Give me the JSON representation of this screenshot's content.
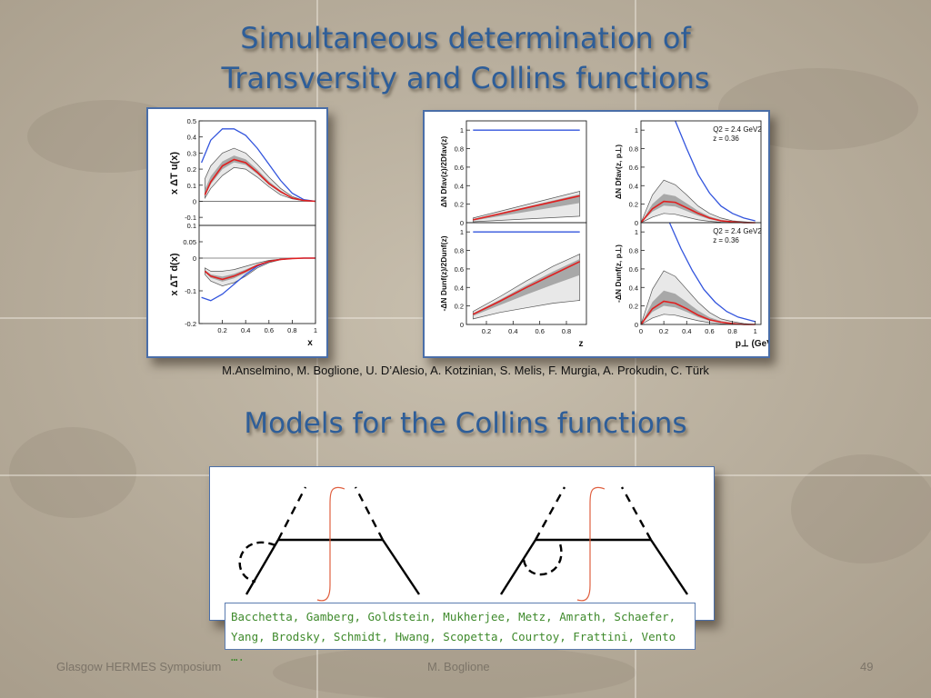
{
  "slide": {
    "title_line1": "Simultaneous determination of",
    "title_line2": "Transversity and Collins functions",
    "authors": "M.Anselmino, M. Boglione, U. D’Alesio,  A. Kotzinian, S. Melis, F. Murgia, A. Prokudin, C. Türk",
    "section_title": "Models for the Collins functions",
    "references_line1": "Bacchetta, Gamberg, Goldstein, Mukherjee, Metz, Amrath, Schaefer,",
    "references_line2": "Yang, Brodsky, Schmidt, Hwang, Scopetta, Courtoy, Frattini, Vento ….",
    "footer_left": "Glasgow HERMES Symposium",
    "footer_center": "M. Boglione",
    "footer_right": "49"
  },
  "colors": {
    "title": "#2e5e99",
    "best_fit": "#e02020",
    "positivity_bound": "#3355dd",
    "band_outer": "#e8e8e8",
    "band_inner": "#a8a8a8",
    "panel_border": "#4a6ea8",
    "references_text": "#3f8a2c",
    "diagram_integral": "#e06040"
  },
  "chart_data": [
    {
      "type": "line",
      "id": "transversity-u",
      "ylabel": "x ΔT u(x)",
      "xlabel": "",
      "xlim": [
        0,
        1
      ],
      "ylim": [
        -0.15,
        0.5
      ],
      "yticks": [
        "0.5",
        "0.4",
        "0.3",
        "0.2",
        "0.1",
        "0",
        "-0.1"
      ],
      "xticks": [],
      "series": [
        {
          "role": "bound",
          "x": [
            0.02,
            0.1,
            0.2,
            0.3,
            0.4,
            0.5,
            0.6,
            0.7,
            0.8,
            0.9,
            1.0
          ],
          "y": [
            0.24,
            0.38,
            0.45,
            0.45,
            0.41,
            0.33,
            0.23,
            0.13,
            0.05,
            0.01,
            0
          ]
        },
        {
          "role": "band_upper",
          "x": [
            0.05,
            0.1,
            0.2,
            0.3,
            0.4,
            0.5,
            0.6,
            0.7,
            0.8,
            0.9,
            1.0
          ],
          "y": [
            0.14,
            0.22,
            0.3,
            0.33,
            0.3,
            0.23,
            0.15,
            0.08,
            0.03,
            0.005,
            0
          ]
        },
        {
          "role": "best_fit",
          "x": [
            0.05,
            0.1,
            0.2,
            0.3,
            0.4,
            0.5,
            0.6,
            0.7,
            0.8,
            0.9,
            1.0
          ],
          "y": [
            0.04,
            0.12,
            0.22,
            0.26,
            0.24,
            0.18,
            0.11,
            0.06,
            0.02,
            0.005,
            0
          ]
        },
        {
          "role": "band_lower",
          "x": [
            0.05,
            0.1,
            0.2,
            0.3,
            0.4,
            0.5,
            0.6,
            0.7,
            0.8,
            0.9,
            1.0
          ],
          "y": [
            0.02,
            0.08,
            0.16,
            0.21,
            0.2,
            0.15,
            0.09,
            0.04,
            0.015,
            0.003,
            0
          ]
        }
      ]
    },
    {
      "type": "line",
      "id": "transversity-d",
      "ylabel": "x ΔT d(x)",
      "xlabel": "x",
      "xlim": [
        0,
        1
      ],
      "ylim": [
        -0.2,
        0.1
      ],
      "yticks": [
        "0.1",
        "0.05",
        "0",
        "-0.1",
        "-0.2"
      ],
      "xticks": [
        "0.2",
        "0.4",
        "0.6",
        "0.8",
        "1"
      ],
      "series": [
        {
          "role": "bound",
          "x": [
            0.02,
            0.1,
            0.2,
            0.3,
            0.4,
            0.5,
            0.6,
            0.7,
            0.8,
            0.9,
            1.0
          ],
          "y": [
            -0.12,
            -0.13,
            -0.11,
            -0.08,
            -0.05,
            -0.025,
            -0.01,
            -0.004,
            -0.001,
            0,
            0
          ]
        },
        {
          "role": "band_upper",
          "x": [
            0.05,
            0.1,
            0.2,
            0.3,
            0.4,
            0.5,
            0.6,
            0.7,
            0.8,
            0.9,
            1.0
          ],
          "y": [
            -0.03,
            -0.04,
            -0.04,
            -0.035,
            -0.025,
            -0.015,
            -0.007,
            -0.003,
            -0.001,
            0,
            0
          ]
        },
        {
          "role": "best_fit",
          "x": [
            0.05,
            0.1,
            0.2,
            0.3,
            0.4,
            0.5,
            0.6,
            0.7,
            0.8,
            0.9,
            1.0
          ],
          "y": [
            -0.04,
            -0.055,
            -0.065,
            -0.055,
            -0.04,
            -0.022,
            -0.01,
            -0.004,
            -0.001,
            0,
            0
          ]
        },
        {
          "role": "band_lower",
          "x": [
            0.05,
            0.1,
            0.2,
            0.3,
            0.4,
            0.5,
            0.6,
            0.7,
            0.8,
            0.9,
            1.0
          ],
          "y": [
            -0.05,
            -0.07,
            -0.085,
            -0.075,
            -0.055,
            -0.03,
            -0.014,
            -0.005,
            -0.001,
            0,
            0
          ]
        }
      ]
    },
    {
      "type": "line",
      "id": "collins-fav-z",
      "ylabel": "ΔN Dfav(z)/2Dfav(z)",
      "xlabel": "",
      "xlim": [
        0.05,
        0.95
      ],
      "ylim": [
        0,
        1.1
      ],
      "yticks": [
        "1",
        "0.8",
        "0.6",
        "0.4",
        "0.2",
        "0"
      ],
      "xticks": [],
      "series": [
        {
          "role": "bound",
          "x": [
            0.1,
            0.9
          ],
          "y": [
            1,
            1
          ]
        },
        {
          "role": "band_upper",
          "x": [
            0.1,
            0.9
          ],
          "y": [
            0.05,
            0.34
          ]
        },
        {
          "role": "best_fit",
          "x": [
            0.1,
            0.9
          ],
          "y": [
            0.03,
            0.29
          ]
        },
        {
          "role": "band_lower",
          "x": [
            0.1,
            0.9
          ],
          "y": [
            0.01,
            0.07
          ]
        }
      ]
    },
    {
      "type": "line",
      "id": "collins-unf-z",
      "ylabel": "-ΔN Dunf(z)/2Dunf(z)",
      "xlabel": "z",
      "xlim": [
        0.05,
        0.95
      ],
      "ylim": [
        0,
        1.1
      ],
      "yticks": [
        "1",
        "0.8",
        "0.6",
        "0.4",
        "0.2",
        "0"
      ],
      "xticks": [
        "0.2",
        "0.4",
        "0.6",
        "0.8"
      ],
      "series": [
        {
          "role": "bound",
          "x": [
            0.1,
            0.9
          ],
          "y": [
            1,
            1
          ]
        },
        {
          "role": "band_upper",
          "x": [
            0.1,
            0.3,
            0.5,
            0.7,
            0.9
          ],
          "y": [
            0.14,
            0.3,
            0.47,
            0.63,
            0.76
          ]
        },
        {
          "role": "best_fit",
          "x": [
            0.1,
            0.3,
            0.5,
            0.7,
            0.9
          ],
          "y": [
            0.11,
            0.25,
            0.4,
            0.54,
            0.68
          ]
        },
        {
          "role": "band_lower",
          "x": [
            0.1,
            0.3,
            0.5,
            0.7,
            0.9
          ],
          "y": [
            0.06,
            0.13,
            0.18,
            0.23,
            0.26
          ]
        }
      ]
    },
    {
      "type": "line",
      "id": "collins-fav-pt",
      "ylabel": "ΔN Dfav(z, p⊥)",
      "xlabel": "",
      "annotation": [
        "Q2 = 2.4 GeV2",
        "z = 0.36"
      ],
      "xlim": [
        0,
        1.05
      ],
      "ylim": [
        0,
        1.1
      ],
      "yticks": [
        "1",
        "0.8",
        "0.6",
        "0.4",
        "0.2",
        "0"
      ],
      "xticks": [],
      "series": [
        {
          "role": "bound",
          "x": [
            0.3,
            0.4,
            0.5,
            0.6,
            0.7,
            0.8,
            0.9,
            1.0
          ],
          "y": [
            1.1,
            0.8,
            0.52,
            0.32,
            0.18,
            0.1,
            0.05,
            0.02
          ]
        },
        {
          "role": "band_upper",
          "x": [
            0,
            0.1,
            0.2,
            0.3,
            0.4,
            0.5,
            0.6,
            0.7,
            0.8,
            0.9,
            1.0
          ],
          "y": [
            0,
            0.3,
            0.46,
            0.41,
            0.3,
            0.18,
            0.1,
            0.05,
            0.02,
            0.01,
            0
          ]
        },
        {
          "role": "best_fit",
          "x": [
            0,
            0.1,
            0.2,
            0.3,
            0.4,
            0.5,
            0.6,
            0.7,
            0.8,
            0.9,
            1.0
          ],
          "y": [
            0,
            0.15,
            0.23,
            0.22,
            0.16,
            0.1,
            0.05,
            0.02,
            0.01,
            0,
            0
          ]
        },
        {
          "role": "band_lower",
          "x": [
            0,
            0.1,
            0.2,
            0.3,
            0.4,
            0.5,
            0.6,
            0.7,
            0.8,
            0.9,
            1.0
          ],
          "y": [
            0,
            0.06,
            0.1,
            0.09,
            0.06,
            0.03,
            0.015,
            0.005,
            0,
            0,
            0
          ]
        }
      ]
    },
    {
      "type": "line",
      "id": "collins-unf-pt",
      "ylabel": "-ΔN Dunf(z, p⊥)",
      "xlabel": "p⊥ (GeV)",
      "annotation": [
        "Q2 = 2.4 GeV2",
        "z = 0.36"
      ],
      "xlim": [
        0,
        1.05
      ],
      "ylim": [
        0,
        1.1
      ],
      "yticks": [
        "1",
        "0.8",
        "0.6",
        "0.4",
        "0.2",
        "0"
      ],
      "xticks": [
        "0",
        "0.2",
        "0.4",
        "0.6",
        "0.8",
        "1"
      ],
      "series": [
        {
          "role": "bound",
          "x": [
            0.25,
            0.35,
            0.45,
            0.55,
            0.65,
            0.75,
            0.85,
            1.0
          ],
          "y": [
            1.1,
            0.82,
            0.58,
            0.38,
            0.24,
            0.14,
            0.08,
            0.03
          ]
        },
        {
          "role": "band_upper",
          "x": [
            0,
            0.1,
            0.2,
            0.3,
            0.4,
            0.5,
            0.6,
            0.7,
            0.8,
            0.9,
            1.0
          ],
          "y": [
            0,
            0.38,
            0.58,
            0.52,
            0.38,
            0.24,
            0.13,
            0.06,
            0.03,
            0.01,
            0
          ]
        },
        {
          "role": "best_fit",
          "x": [
            0,
            0.1,
            0.2,
            0.3,
            0.4,
            0.5,
            0.6,
            0.7,
            0.8,
            0.9,
            1.0
          ],
          "y": [
            0,
            0.17,
            0.25,
            0.23,
            0.17,
            0.1,
            0.05,
            0.025,
            0.01,
            0,
            0
          ]
        },
        {
          "role": "band_lower",
          "x": [
            0,
            0.1,
            0.2,
            0.3,
            0.4,
            0.5,
            0.6,
            0.7,
            0.8,
            0.9,
            1.0
          ],
          "y": [
            0,
            0.07,
            0.11,
            0.1,
            0.07,
            0.04,
            0.02,
            0.008,
            0.003,
            0,
            0
          ]
        }
      ]
    }
  ]
}
